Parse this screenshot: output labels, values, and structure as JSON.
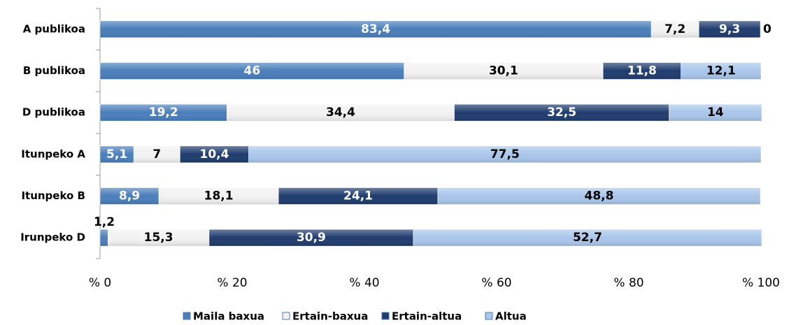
{
  "chart_data": {
    "type": "stacked_bar_horizontal",
    "categories": [
      "A publikoa",
      "B publikoa",
      "D publikoa",
      "Itunpeko A",
      "Itunpeko B",
      "Irunpeko D"
    ],
    "series": [
      {
        "name": "Maila baxua",
        "color": "#4a7ebb",
        "values": [
          83.4,
          46,
          19.2,
          5.1,
          8.9,
          1.2
        ],
        "value_labels": [
          "83,4",
          "46",
          "19,2",
          "5,1",
          "8,9",
          "1,2"
        ]
      },
      {
        "name": "Ertain-baxua",
        "color": "#f2f2f2",
        "values": [
          7.2,
          30.1,
          34.4,
          7,
          18.1,
          15.3
        ],
        "value_labels": [
          "7,2",
          "30,1",
          "34,4",
          "7",
          "18,1",
          "15,3"
        ]
      },
      {
        "name": "Ertain-altua",
        "color": "#1f3c6e",
        "values": [
          9.3,
          11.8,
          32.5,
          10.4,
          24.1,
          30.9
        ],
        "value_labels": [
          "9,3",
          "11,8",
          "32,5",
          "10,4",
          "24,1",
          "30,9"
        ]
      },
      {
        "name": "Altua",
        "color": "#a9c6ea",
        "values": [
          0,
          12.1,
          14,
          77.5,
          48.8,
          52.7
        ],
        "value_labels": [
          "0",
          "12,1",
          "14",
          "77,5",
          "48,8",
          "52,7"
        ]
      }
    ],
    "xlim": [
      0,
      100
    ],
    "xticks": [
      {
        "value": 0,
        "label": "% 0"
      },
      {
        "value": 20,
        "label": "% 20"
      },
      {
        "value": 40,
        "label": "% 40"
      },
      {
        "value": 60,
        "label": "% 60"
      },
      {
        "value": 80,
        "label": "% 80"
      },
      {
        "value": 100,
        "label": "% 100"
      }
    ],
    "grid": false,
    "legend": "bottom"
  }
}
